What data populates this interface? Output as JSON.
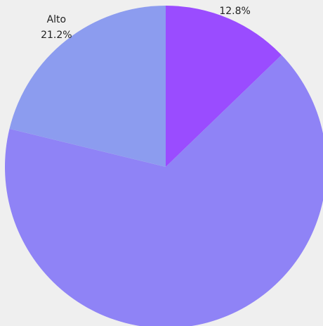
{
  "chart_data": {
    "type": "pie",
    "categories": [
      null,
      null,
      "Alto"
    ],
    "values": [
      12.8,
      66.0,
      21.2
    ],
    "value_labels": [
      "12.8%",
      null,
      "21.2%"
    ],
    "colors": [
      "#9a4cff",
      "#8f83f6",
      "#8c9cef"
    ]
  }
}
